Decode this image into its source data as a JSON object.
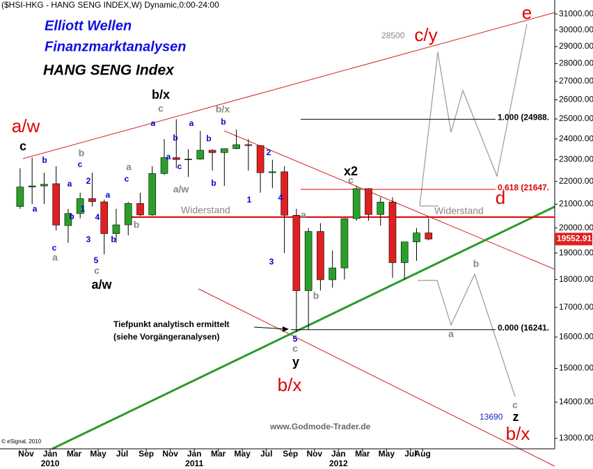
{
  "chart_data": {
    "type": "candlestick",
    "title": "($HSI-HKG - HANG SENG INDEX,W) Dynamic,0:00-24:00",
    "x": [
      "2009-10",
      "2009-11",
      "2009-12",
      "2010-01",
      "2010-02",
      "2010-03",
      "2010-04",
      "2010-05",
      "2010-06",
      "2010-07",
      "2010-08",
      "2010-09",
      "2010-10",
      "2010-11",
      "2010-12",
      "2011-01",
      "2011-02",
      "2011-03",
      "2011-04",
      "2011-05",
      "2011-06",
      "2011-07",
      "2011-08",
      "2011-09",
      "2011-10",
      "2011-11",
      "2011-12",
      "2012-01",
      "2012-02",
      "2012-03",
      "2012-04",
      "2012-05",
      "2012-06",
      "2012-07",
      "2012-08"
    ],
    "open": [
      20900,
      21750,
      21800,
      21900,
      20100,
      20600,
      21240,
      21100,
      19770,
      20130,
      21030,
      20540,
      22360,
      23100,
      23000,
      23030,
      23450,
      23340,
      23530,
      23720,
      23680,
      22400,
      22440,
      20530,
      17590,
      19860,
      17990,
      18430,
      20390,
      21680,
      20560,
      21090,
      18630,
      19440,
      19800
    ],
    "high": [
      22600,
      23100,
      22400,
      22700,
      20800,
      21500,
      22400,
      21200,
      20800,
      21100,
      21500,
      22700,
      24000,
      24990,
      23500,
      24400,
      23500,
      23500,
      24470,
      24000,
      23700,
      23000,
      22700,
      20800,
      20000,
      20200,
      19100,
      20400,
      21800,
      21700,
      21300,
      21300,
      19400,
      20000,
      20400
    ],
    "low": [
      20800,
      21000,
      21000,
      19900,
      19400,
      20400,
      20900,
      18950,
      19400,
      19700,
      20500,
      20500,
      22300,
      22600,
      22200,
      23000,
      22500,
      21800,
      23500,
      22500,
      21500,
      21700,
      19000,
      16170,
      16240,
      17600,
      17700,
      18000,
      20300,
      20300,
      20100,
      18060,
      18000,
      18700,
      19500
    ],
    "close": [
      21750,
      21800,
      21870,
      20120,
      20600,
      21240,
      21110,
      19770,
      20130,
      21030,
      20540,
      22360,
      23100,
      23010,
      23030,
      23450,
      23340,
      23530,
      23720,
      23680,
      22400,
      22440,
      20530,
      17590,
      19860,
      17990,
      18430,
      20390,
      21680,
      20560,
      21090,
      18630,
      19440,
      19800,
      19552.91
    ],
    "up_color": "#2aa02a",
    "down_color": "#e02020",
    "log_scale": true,
    "ylim": [
      12725,
      31900
    ],
    "yticks": [
      {
        "value": 31000,
        "label": "31000.00"
      },
      {
        "value": 30000,
        "label": "30000.00"
      },
      {
        "value": 29000,
        "label": "29000.00"
      },
      {
        "value": 28000,
        "label": "28000.00"
      },
      {
        "value": 27000,
        "label": "27000.00"
      },
      {
        "value": 26000,
        "label": "26000.00"
      },
      {
        "value": 25000,
        "label": "25000.00"
      },
      {
        "value": 24000,
        "label": "24000.00"
      },
      {
        "value": 23000,
        "label": "23000.00"
      },
      {
        "value": 22000,
        "label": "22000.00"
      },
      {
        "value": 21000,
        "label": "21000.00"
      },
      {
        "value": 20000,
        "label": "20000.00"
      },
      {
        "value": 19000,
        "label": "19000.00"
      },
      {
        "value": 18000,
        "label": "18000.00"
      },
      {
        "value": 17000,
        "label": "17000.00"
      },
      {
        "value": 16000,
        "label": "16000.00"
      },
      {
        "value": 15000,
        "label": "15000.00"
      },
      {
        "value": 14000,
        "label": "14000.00"
      },
      {
        "value": 13000,
        "label": "13000.00"
      }
    ],
    "xlim": [
      "2009-09",
      "2013-07"
    ],
    "xticks": [
      {
        "value": "2009-11",
        "label": "Nov"
      },
      {
        "value": "2010-01",
        "label": "Jan"
      },
      {
        "value": "2010-03",
        "label": "Mar"
      },
      {
        "value": "2010-05",
        "label": "May"
      },
      {
        "value": "2010-07",
        "label": "Jul"
      },
      {
        "value": "2010-09",
        "label": "Sep"
      },
      {
        "value": "2010-11",
        "label": "Nov"
      },
      {
        "value": "2011-01",
        "label": "Jan"
      },
      {
        "value": "2011-03",
        "label": "Mar"
      },
      {
        "value": "2011-05",
        "label": "May"
      },
      {
        "value": "2011-07",
        "label": "Jul"
      },
      {
        "value": "2011-09",
        "label": "Sep"
      },
      {
        "value": "2011-11",
        "label": "Nov"
      },
      {
        "value": "2012-01",
        "label": "Jan"
      },
      {
        "value": "2012-03",
        "label": "Mar"
      },
      {
        "value": "2012-05",
        "label": "May"
      },
      {
        "value": "2012-07",
        "label": "Jul"
      },
      {
        "value": "2012-08",
        "label": "Aug"
      }
    ],
    "year_ticks": [
      {
        "value": "2010-01",
        "label": "2010"
      },
      {
        "value": "2011-01",
        "label": "2011"
      },
      {
        "value": "2012-01",
        "label": "2012"
      }
    ],
    "levels": [
      {
        "label": "1.000 (24988.",
        "value": 24988,
        "color": "#000000"
      },
      {
        "label": "0.618 (21647.",
        "value": 21647,
        "color": "#e00000"
      },
      {
        "label": "0.000 (16241.",
        "value": 16241,
        "color": "#000000"
      }
    ],
    "resistance": {
      "value": 20450,
      "labels": [
        "Widerstand",
        "Widerstand"
      ],
      "color": "#e00000"
    }
  },
  "header": {
    "line1": "Elliott Wellen",
    "line2": "Finanzmarktanalysen",
    "line3": "HANG SENG Index"
  },
  "annotations": {
    "low_note_1": "Tiefpunkt analytisch ermittelt",
    "low_note_2": "(siehe Vorgängeranalysen)",
    "target_high": "28500",
    "target_low": "13690",
    "website": "www.Godmode-Trader.de",
    "copyright": "© eSignal, 2010"
  },
  "wave_labels": [
    "a/w",
    "b/x",
    "c/y",
    "d",
    "e",
    "b/x",
    "c",
    "b/x",
    "a/w",
    "x2",
    "y",
    "z",
    "c",
    "b/x",
    "a",
    "b",
    "a",
    "c",
    "a/w",
    "b",
    "a",
    "b",
    "c",
    "c",
    "b",
    "a",
    "c",
    "b",
    "a",
    "c",
    "c",
    "a",
    "2",
    "1",
    "b",
    "3",
    "4",
    "5",
    "a",
    "b",
    "c",
    "a",
    "b",
    "a",
    "c",
    "a",
    "b",
    "b",
    "b",
    "1",
    "2",
    "3",
    "4",
    "5"
  ]
}
